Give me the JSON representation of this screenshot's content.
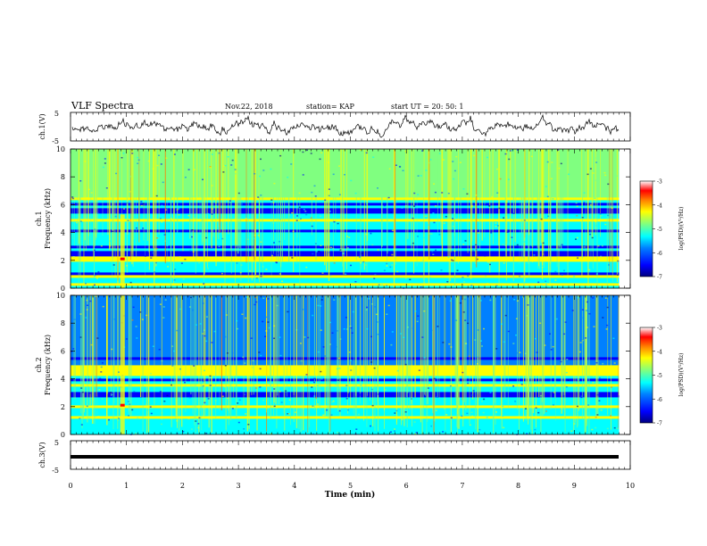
{
  "header": {
    "title": "VLF Spectra",
    "date": "Nov.22, 2018",
    "station": "station= KAP",
    "start_ut": "start  UT =  20: 50: 1"
  },
  "chart_data": [
    {
      "type": "line",
      "ylabel": "ch.1(V)",
      "ylim": [
        -5,
        5
      ],
      "yticks": [
        "5",
        "-5"
      ],
      "description_of_series": "noisy waveform around 0 V",
      "x_range": [
        0,
        9.8
      ]
    },
    {
      "type": "heatmap",
      "ylabel_line1": "ch.1",
      "ylabel_line2": "Frequency (kHz)",
      "ylim": [
        0,
        10
      ],
      "yticks": [
        "0",
        "2",
        "4",
        "6",
        "8",
        "10"
      ],
      "x_range": [
        0,
        9.8
      ],
      "colorbar": {
        "label": "log(PSD)(V²/Hz)",
        "ticks": [
          "-3",
          "-4",
          "-5",
          "-6",
          "-7"
        ],
        "range": [
          -7,
          -3
        ]
      },
      "bright_bands_khz": [
        0.3,
        0.8,
        2.0,
        2.2,
        4.9,
        6.5
      ],
      "dark_bands_khz": [
        1.0,
        2.5,
        3.0,
        4.1,
        5.6,
        6.0
      ],
      "broadband_event_min": 0.92
    },
    {
      "type": "heatmap",
      "ylabel_line1": "ch.2",
      "ylabel_line2": "Frequency (kHz)",
      "ylim": [
        0,
        10
      ],
      "yticks": [
        "0",
        "2",
        "4",
        "6",
        "8",
        "10"
      ],
      "x_range": [
        0,
        9.8
      ],
      "colorbar": {
        "label": "log(PSD)(V²/Hz)",
        "ticks": [
          "-3",
          "-4",
          "-5",
          "-6",
          "-7"
        ],
        "range": [
          -7,
          -3
        ]
      },
      "bright_bands_khz": [
        1.2,
        2.0,
        3.5,
        4.4,
        4.8
      ],
      "dark_bands_khz": [
        2.8,
        3.0,
        4.0,
        5.5
      ],
      "broadband_event_min": 0.92
    },
    {
      "type": "line",
      "ylabel": "ch.3(V)",
      "ylim": [
        -5,
        5
      ],
      "yticks": [
        "5",
        "-5"
      ],
      "description_of_series": "flat line near 0 V",
      "x_range": [
        0,
        9.8
      ]
    }
  ],
  "xaxis": {
    "label": "Time (min)",
    "range": [
      0,
      10
    ],
    "ticks": [
      "0",
      "1",
      "2",
      "3",
      "4",
      "5",
      "6",
      "7",
      "8",
      "9",
      "10"
    ]
  },
  "colors": {
    "scale": [
      "#00007f",
      "#0000ff",
      "#0080ff",
      "#00ffff",
      "#80ff80",
      "#ffff00",
      "#ff8000",
      "#ff0000",
      "#800000"
    ]
  }
}
